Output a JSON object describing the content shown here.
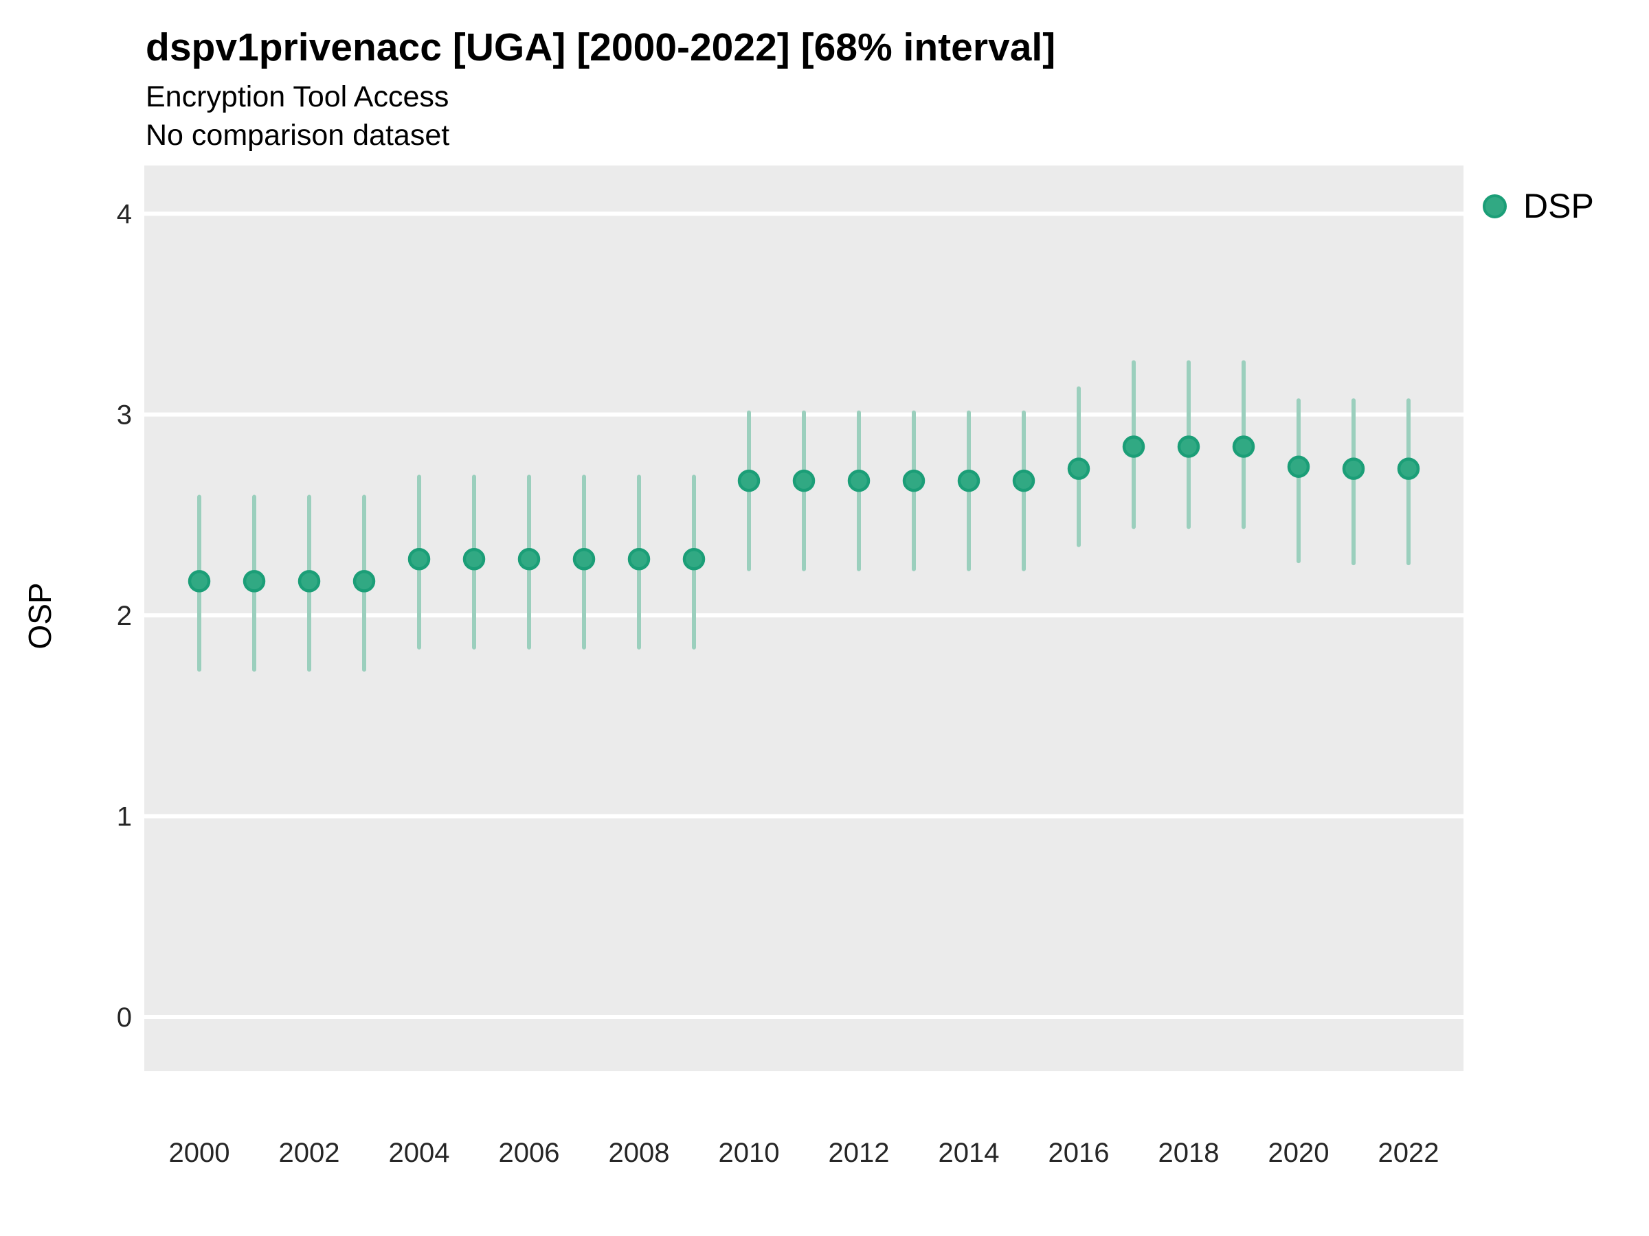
{
  "chart_data": {
    "type": "scatter",
    "title": "dspv1privenacc [UGA] [2000-2022] [68% interval]",
    "subtitle": "Encryption Tool Access",
    "note": "No comparison dataset",
    "xlabel": "",
    "ylabel": "OSP",
    "interval_label": "68% interval",
    "xlim": [
      1999,
      2023
    ],
    "ylim": [
      -0.27,
      4.24
    ],
    "xticks": [
      2000,
      2002,
      2004,
      2006,
      2008,
      2010,
      2012,
      2014,
      2016,
      2018,
      2020,
      2022
    ],
    "yticks": [
      0,
      1,
      2,
      3,
      4
    ],
    "grid": "horizontal-major-only",
    "legend_position": "right-top",
    "series": [
      {
        "name": "DSP",
        "marker": "circle",
        "color": "#31a983",
        "border_color": "#1b9e77",
        "interval_color": "#9bcfbd",
        "x": [
          2000,
          2001,
          2002,
          2003,
          2004,
          2005,
          2006,
          2007,
          2008,
          2009,
          2010,
          2011,
          2012,
          2013,
          2014,
          2015,
          2016,
          2017,
          2018,
          2019,
          2020,
          2021,
          2022
        ],
        "y": [
          2.17,
          2.17,
          2.17,
          2.17,
          2.28,
          2.28,
          2.28,
          2.28,
          2.28,
          2.28,
          2.67,
          2.67,
          2.67,
          2.67,
          2.67,
          2.67,
          2.73,
          2.84,
          2.84,
          2.84,
          2.74,
          2.73,
          2.73
        ],
        "interval_low": [
          1.73,
          1.73,
          1.73,
          1.73,
          1.84,
          1.84,
          1.84,
          1.84,
          1.84,
          1.84,
          2.23,
          2.23,
          2.23,
          2.23,
          2.23,
          2.23,
          2.35,
          2.44,
          2.44,
          2.44,
          2.27,
          2.26,
          2.26
        ],
        "interval_high": [
          2.59,
          2.59,
          2.59,
          2.59,
          2.69,
          2.69,
          2.69,
          2.69,
          2.69,
          2.69,
          3.01,
          3.01,
          3.01,
          3.01,
          3.01,
          3.01,
          3.13,
          3.26,
          3.26,
          3.26,
          3.07,
          3.07,
          3.07
        ]
      }
    ]
  },
  "colors": {
    "page_background": "#ffffff",
    "panel_background": "#ebebeb",
    "gridline": "#ffffff",
    "tick_label": "#262626",
    "text": "#000000"
  }
}
